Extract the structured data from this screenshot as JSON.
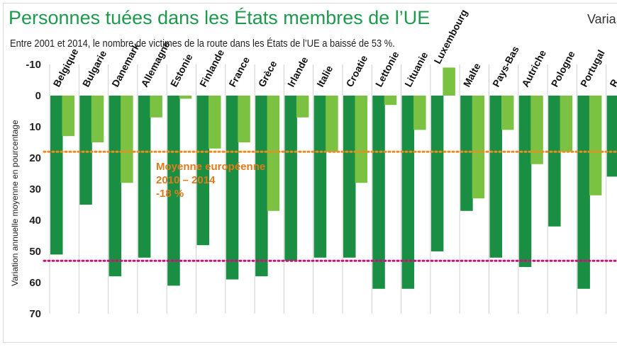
{
  "header": {
    "title": "Personnes tuées dans les États membres de l’UE",
    "title_right": "Varia",
    "subtitle": "Entre 2001 et 2014, le nombre de victimes de la route dans les États de l’UE a baissé de 53 %."
  },
  "colors": {
    "series_dark": "#1a8f44",
    "series_light": "#7cc242",
    "avg_2010_2014": "#f08a1d",
    "avg_2001_2014": "#c4157d",
    "grid": "#cfcfcf"
  },
  "annotation": {
    "line1": "Moyenne européenne",
    "line2": "2010 – 2014",
    "line3": "-18 %"
  },
  "chart_data": {
    "type": "bar",
    "title": "Personnes tuées dans les États membres de l’UE",
    "ylabel": "Variation annuelle moyenne en pourcentage",
    "y_inverted": true,
    "ylim": [
      -10,
      70
    ],
    "yticks": [
      -10,
      0,
      10,
      20,
      30,
      40,
      50,
      60,
      70
    ],
    "grid": "vertical",
    "categories": [
      "Belgique",
      "Bulgarie",
      "Danemark",
      "Allemagne",
      "Estonie",
      "Finlande",
      "France",
      "Grèce",
      "Irlande",
      "Italie",
      "Croatie",
      "Lettonie",
      "Lituanie",
      "Luxembourg",
      "Malte",
      "Pays-Bas",
      "Autriche",
      "Pologne",
      "Portugal",
      "R"
    ],
    "series": [
      {
        "values": [
          51,
          35,
          58,
          52,
          61,
          48,
          59,
          58,
          53,
          52,
          52,
          62,
          62,
          50,
          37,
          52,
          55,
          42,
          62,
          26
        ]
      },
      {
        "values": [
          13,
          15,
          28,
          7,
          1,
          17,
          15,
          37,
          7,
          18,
          28,
          3,
          11,
          -9,
          33,
          11,
          22,
          18,
          32,
          null
        ]
      }
    ],
    "reference_lines": [
      {
        "value": 18,
        "style": "dotted"
      },
      {
        "value": 53,
        "style": "dotted"
      }
    ]
  }
}
